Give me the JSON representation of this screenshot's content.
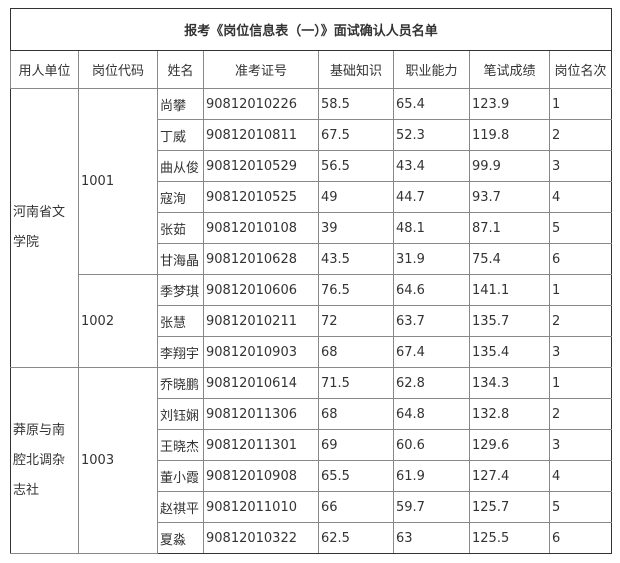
{
  "title": "报考《岗位信息表（一）》面试确认人员名单",
  "headers": [
    "用人单位",
    "岗位代码",
    "姓名",
    "准考证号",
    "基础知识",
    "职业能力",
    "笔试成绩",
    "岗位名次"
  ],
  "units": [
    "河南省文学院",
    "莽原与南腔北调杂志社"
  ],
  "codes": [
    "1001",
    "1002",
    "1003"
  ],
  "rows": [
    [
      "尚攀",
      "90812010226",
      "58.5",
      "65.4",
      "123.9",
      "1"
    ],
    [
      "丁威",
      "90812010811",
      "67.5",
      "52.3",
      "119.8",
      "2"
    ],
    [
      "曲从俊",
      "90812010529",
      "56.5",
      "43.4",
      "99.9",
      "3"
    ],
    [
      "寇洵",
      "90812010525",
      "49",
      "44.7",
      "93.7",
      "4"
    ],
    [
      "张茹",
      "90812010108",
      "39",
      "48.1",
      "87.1",
      "5"
    ],
    [
      "甘海晶",
      "90812010628",
      "43.5",
      "31.9",
      "75.4",
      "6"
    ],
    [
      "季梦琪",
      "90812010606",
      "76.5",
      "64.6",
      "141.1",
      "1"
    ],
    [
      "张慧",
      "90812010211",
      "72",
      "63.7",
      "135.7",
      "2"
    ],
    [
      "李翔宇",
      "90812010903",
      "68",
      "67.4",
      "135.4",
      "3"
    ],
    [
      "乔晓鹏",
      "90812010614",
      "71.5",
      "62.8",
      "134.3",
      "1"
    ],
    [
      "刘钰娴",
      "90812011306",
      "68",
      "64.8",
      "132.8",
      "2"
    ],
    [
      "王晓杰",
      "90812011301",
      "69",
      "60.6",
      "129.6",
      "3"
    ],
    [
      "董小霞",
      "90812010908",
      "65.5",
      "61.9",
      "127.4",
      "4"
    ],
    [
      "赵祺平",
      "90812011010",
      "66",
      "59.7",
      "125.7",
      "5"
    ],
    [
      "夏淼",
      "90812010322",
      "62.5",
      "63",
      "125.5",
      "6"
    ]
  ]
}
